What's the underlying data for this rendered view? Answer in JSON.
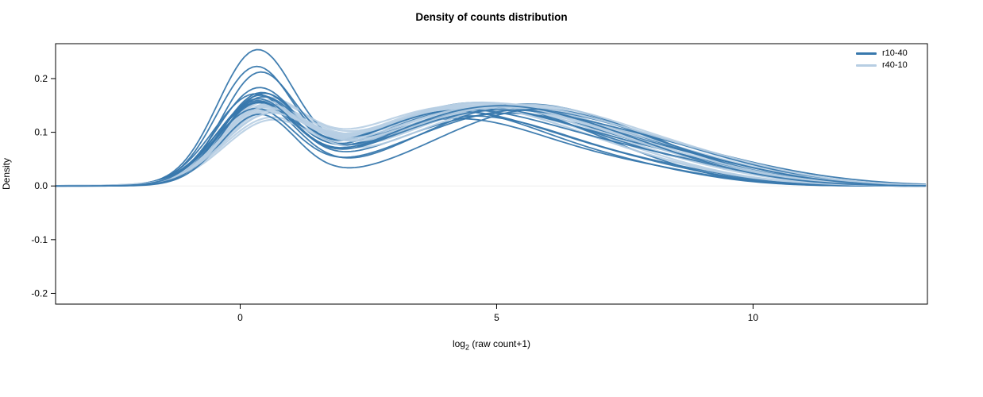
{
  "title": "Density of counts distribution",
  "ylabel": "Density",
  "xlabel_parts": {
    "base": "log",
    "sub": "2",
    "rest": " (raw count+1)"
  },
  "legend": {
    "position": "top-right",
    "items": [
      {
        "label": "r10-40",
        "color": "#3878ad"
      },
      {
        "label": "r40-10",
        "color": "#b7cee3"
      }
    ]
  },
  "chart_data": {
    "type": "line",
    "title": "Density of counts distribution",
    "xlabel": "log2 (raw count+1)",
    "ylabel": "Density",
    "xlim": [
      -3.6,
      13.4
    ],
    "ylim": [
      -0.22,
      0.265
    ],
    "xticks": [
      {
        "v": 0,
        "label": "0"
      },
      {
        "v": 5,
        "label": "5"
      },
      {
        "v": 10,
        "label": "10"
      }
    ],
    "yticks": [
      {
        "v": -0.2,
        "label": "-0.2"
      },
      {
        "v": -0.1,
        "label": "-0.1"
      },
      {
        "v": 0.0,
        "label": "0.0"
      },
      {
        "v": 0.1,
        "label": "0.1"
      },
      {
        "v": 0.2,
        "label": "0.2"
      }
    ],
    "grid": false,
    "zero_line_color": "#ededed",
    "legend_position": "top-right",
    "curve_model": "each curve is a density approximated by sum of 3 gaussian bumps [h1,m1,s1,h2,m2,s2,h3,m3,s3]; y(x)=sum h*exp(-(x-m)^2/(2 s^2))",
    "series": [
      {
        "name": "r10-40",
        "color": "#3878ad",
        "stroke_width": 1.8,
        "opacity": 0.95,
        "curves": [
          [
            0.235,
            0.3,
            0.75,
            0.125,
            4.2,
            2.0,
            0.02,
            8.0,
            1.4
          ],
          [
            0.205,
            0.28,
            0.74,
            0.13,
            4.5,
            2.1,
            0.018,
            8.4,
            1.4
          ],
          [
            0.192,
            0.35,
            0.72,
            0.138,
            4.1,
            1.9,
            0.025,
            7.6,
            1.5
          ],
          [
            0.165,
            0.32,
            0.76,
            0.142,
            4.8,
            2.2,
            0.02,
            8.8,
            1.6
          ],
          [
            0.158,
            0.25,
            0.78,
            0.135,
            5.2,
            2.3,
            0.015,
            9.2,
            1.5
          ],
          [
            0.152,
            0.4,
            0.72,
            0.148,
            4.4,
            2.0,
            0.03,
            7.2,
            1.6
          ],
          [
            0.148,
            0.3,
            0.8,
            0.15,
            5.5,
            2.1,
            0.02,
            8.6,
            1.5
          ],
          [
            0.155,
            0.35,
            0.74,
            0.128,
            3.9,
            1.8,
            0.045,
            7.0,
            1.8
          ],
          [
            0.143,
            0.28,
            0.77,
            0.14,
            4.9,
            2.2,
            0.035,
            8.2,
            1.7
          ],
          [
            0.15,
            0.33,
            0.72,
            0.132,
            4.3,
            2.0,
            0.05,
            7.8,
            2.0
          ],
          [
            0.138,
            0.3,
            0.8,
            0.145,
            5.0,
            2.3,
            0.025,
            9.0,
            1.6
          ],
          [
            0.145,
            0.38,
            0.73,
            0.125,
            4.0,
            1.9,
            0.055,
            7.4,
            2.1
          ],
          [
            0.135,
            0.27,
            0.78,
            0.138,
            5.4,
            2.2,
            0.03,
            8.9,
            1.7
          ],
          [
            0.14,
            0.32,
            0.75,
            0.12,
            4.6,
            2.1,
            0.06,
            8.0,
            2.2
          ],
          [
            0.13,
            0.36,
            0.74,
            0.142,
            5.8,
            2.0,
            0.02,
            9.4,
            1.5
          ],
          [
            0.147,
            0.29,
            0.76,
            0.135,
            4.7,
            2.1,
            0.04,
            7.6,
            1.9
          ]
        ]
      },
      {
        "name": "r40-10",
        "color": "#b7cee3",
        "stroke_width": 2.2,
        "opacity": 0.9,
        "curves": [
          [
            0.128,
            0.45,
            0.82,
            0.14,
            4.3,
            2.2,
            0.03,
            7.5,
            1.8
          ],
          [
            0.12,
            0.5,
            0.85,
            0.145,
            4.7,
            2.3,
            0.025,
            8.2,
            1.7
          ],
          [
            0.132,
            0.42,
            0.8,
            0.135,
            4.0,
            2.1,
            0.04,
            7.0,
            2.0
          ],
          [
            0.115,
            0.48,
            0.86,
            0.15,
            5.0,
            2.4,
            0.02,
            8.8,
            1.6
          ],
          [
            0.125,
            0.4,
            0.82,
            0.142,
            4.5,
            2.2,
            0.035,
            7.8,
            1.9
          ],
          [
            0.11,
            0.52,
            0.88,
            0.148,
            5.3,
            2.3,
            0.025,
            9.0,
            1.7
          ],
          [
            0.13,
            0.38,
            0.8,
            0.138,
            4.2,
            2.1,
            0.045,
            7.3,
            2.0
          ],
          [
            0.118,
            0.46,
            0.84,
            0.144,
            4.8,
            2.3,
            0.03,
            8.5,
            1.8
          ],
          [
            0.122,
            0.43,
            0.83,
            0.136,
            4.4,
            2.2,
            0.05,
            7.6,
            2.1
          ],
          [
            0.112,
            0.5,
            0.86,
            0.146,
            5.1,
            2.4,
            0.028,
            8.9,
            1.7
          ],
          [
            0.127,
            0.41,
            0.8,
            0.133,
            4.1,
            2.0,
            0.042,
            7.1,
            2.0
          ],
          [
            0.108,
            0.55,
            0.88,
            0.15,
            5.5,
            2.3,
            0.022,
            9.3,
            1.6
          ],
          [
            0.124,
            0.44,
            0.82,
            0.139,
            4.6,
            2.2,
            0.038,
            8.0,
            1.9
          ],
          [
            0.116,
            0.47,
            0.85,
            0.143,
            4.9,
            2.3,
            0.032,
            8.6,
            1.8
          ],
          [
            0.121,
            0.39,
            0.81,
            0.137,
            4.3,
            2.1,
            0.048,
            7.4,
            2.1
          ],
          [
            0.113,
            0.51,
            0.86,
            0.147,
            5.2,
            2.4,
            0.026,
            9.1,
            1.7
          ]
        ]
      }
    ]
  }
}
